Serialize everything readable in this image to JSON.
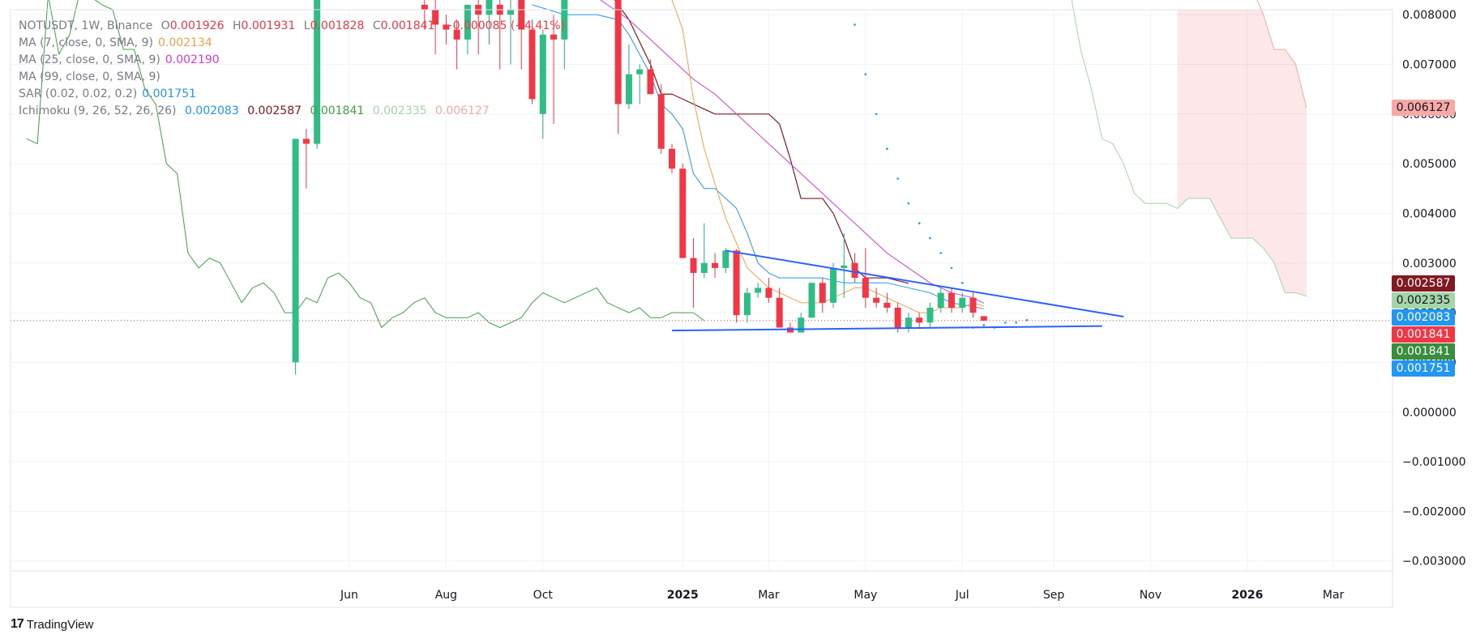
{
  "legend": {
    "symbol_line": "NOTUSDT, 1W, Binance",
    "ohlc": {
      "o_label": "O",
      "o": "0.001926",
      "h_label": "H",
      "h": "0.001931",
      "l_label": "L",
      "l": "0.001828",
      "c_label": "C",
      "c": "0.001841",
      "change": "−0.000085 (−4.41%)"
    },
    "indicators": [
      {
        "label": "MA (7, close, 0, SMA, 9)",
        "value": "0.002134",
        "color": "#f0a04b"
      },
      {
        "label": "MA (25, close, 0, SMA, 9)",
        "value": "0.002190",
        "color": "#d63ad6"
      },
      {
        "label": "MA (99, close, 0, SMA, 9)",
        "value": "",
        "color": "#2962ff"
      },
      {
        "label": "SAR (0.02, 0.02, 0.2)",
        "value": "0.001751",
        "color": "#2196f3"
      }
    ],
    "ichimoku": {
      "label": "Ichimoku (9, 26, 52, 26, 26)",
      "values": [
        {
          "v": "0.002083",
          "color": "#2196f3"
        },
        {
          "v": "0.002587",
          "color": "#801922"
        },
        {
          "v": "0.001841",
          "color": "#43a047"
        },
        {
          "v": "0.002335",
          "color": "#a5d6a7"
        },
        {
          "v": "0.006127",
          "color": "#f7a9a7"
        }
      ]
    }
  },
  "price_tags": [
    {
      "value": "0.006127",
      "price": 0.006127,
      "bg": "#f7a9a7",
      "fg": "#131722"
    },
    {
      "value": "0.002587",
      "price": 0.002587,
      "bg": "#801922",
      "fg": "#ffffff"
    },
    {
      "value": "0.002335",
      "price": 0.002335,
      "bg": "#a5d6a7",
      "fg": "#131722"
    },
    {
      "value": "0.002083",
      "price": 0.002083,
      "bg": "#2196f3",
      "fg": "#ffffff"
    },
    {
      "value": "0.001841",
      "price": 0.001841,
      "bg": "#f23645",
      "fg": "#ffffff"
    },
    {
      "value": "0.001841",
      "price": 0.001841,
      "bg": "#388e3c",
      "fg": "#ffffff"
    },
    {
      "value": "0.001751",
      "price": 0.001751,
      "bg": "#2196f3",
      "fg": "#ffffff"
    }
  ],
  "branding": {
    "logo": "17",
    "name": "TradingView"
  },
  "chart_data": {
    "type": "candlestick",
    "symbol": "NOTUSDT",
    "interval": "1W",
    "exchange": "Binance",
    "y_ticks": [
      "0.008000",
      "0.007000",
      "0.006000",
      "0.005000",
      "0.004000",
      "0.003000",
      "0.002000",
      "0.001000",
      "0.000000",
      "−0.001000",
      "−0.002000",
      "−0.003000"
    ],
    "y_tick_values": [
      0.008,
      0.007,
      0.006,
      0.005,
      0.004,
      0.003,
      0.002,
      0.001,
      0.0,
      -0.001,
      -0.002,
      -0.003
    ],
    "ylim": [
      -0.0032,
      0.0081
    ],
    "x_ticks": [
      {
        "label": "Jun",
        "t": 8,
        "bold": false
      },
      {
        "label": "Aug",
        "t": 17,
        "bold": false
      },
      {
        "label": "Oct",
        "t": 26,
        "bold": false
      },
      {
        "label": "2025",
        "t": 39,
        "bold": true
      },
      {
        "label": "Mar",
        "t": 47,
        "bold": false
      },
      {
        "label": "May",
        "t": 56,
        "bold": false
      },
      {
        "label": "Jul",
        "t": 65,
        "bold": false
      },
      {
        "label": "Sep",
        "t": 73.5,
        "bold": false
      },
      {
        "label": "Nov",
        "t": 82.5,
        "bold": false
      },
      {
        "label": "2026",
        "t": 91.5,
        "bold": true
      },
      {
        "label": "Mar",
        "t": 99.5,
        "bold": false
      }
    ],
    "xlim": [
      -23.5,
      105
    ],
    "last_price": 0.001841,
    "candles": [
      {
        "t": 3,
        "o": 0.001,
        "h": 0.0055,
        "l": 0.00075,
        "c": 0.0055
      },
      {
        "t": 4,
        "o": 0.0055,
        "h": 0.0057,
        "l": 0.0045,
        "c": 0.0054
      },
      {
        "t": 5,
        "o": 0.0054,
        "h": 0.0085,
        "l": 0.0053,
        "c": 0.0085
      },
      {
        "t": 15,
        "o": 0.0082,
        "h": 0.0084,
        "l": 0.0077,
        "c": 0.0081
      },
      {
        "t": 16,
        "o": 0.0081,
        "h": 0.0083,
        "l": 0.0072,
        "c": 0.0078
      },
      {
        "t": 17,
        "o": 0.0078,
        "h": 0.008,
        "l": 0.0074,
        "c": 0.0077
      },
      {
        "t": 18,
        "o": 0.0077,
        "h": 0.0079,
        "l": 0.0069,
        "c": 0.0075
      },
      {
        "t": 19,
        "o": 0.0075,
        "h": 0.0082,
        "l": 0.0072,
        "c": 0.0082
      },
      {
        "t": 20,
        "o": 0.0082,
        "h": 0.0084,
        "l": 0.0072,
        "c": 0.008
      },
      {
        "t": 21,
        "o": 0.008,
        "h": 0.0084,
        "l": 0.0074,
        "c": 0.0083
      },
      {
        "t": 22,
        "o": 0.0082,
        "h": 0.0084,
        "l": 0.0069,
        "c": 0.008
      },
      {
        "t": 23,
        "o": 0.008,
        "h": 0.0083,
        "l": 0.007,
        "c": 0.0081
      },
      {
        "t": 24,
        "o": 0.0083,
        "h": 0.0084,
        "l": 0.0069,
        "c": 0.0077
      },
      {
        "t": 25,
        "o": 0.0077,
        "h": 0.0079,
        "l": 0.0062,
        "c": 0.0063
      },
      {
        "t": 26,
        "o": 0.006,
        "h": 0.0077,
        "l": 0.0055,
        "c": 0.0076
      },
      {
        "t": 27,
        "o": 0.0076,
        "h": 0.008,
        "l": 0.0058,
        "c": 0.0075
      },
      {
        "t": 28,
        "o": 0.0075,
        "h": 0.0084,
        "l": 0.0069,
        "c": 0.0084
      },
      {
        "t": 33,
        "o": 0.0084,
        "h": 0.0085,
        "l": 0.0056,
        "c": 0.0062
      },
      {
        "t": 34,
        "o": 0.0062,
        "h": 0.0074,
        "l": 0.0061,
        "c": 0.0068
      },
      {
        "t": 35,
        "o": 0.0068,
        "h": 0.007,
        "l": 0.0062,
        "c": 0.0069
      },
      {
        "t": 36,
        "o": 0.0069,
        "h": 0.0071,
        "l": 0.0064,
        "c": 0.0064
      },
      {
        "t": 37,
        "o": 0.0064,
        "h": 0.0066,
        "l": 0.0052,
        "c": 0.0053
      },
      {
        "t": 38,
        "o": 0.0053,
        "h": 0.0054,
        "l": 0.0048,
        "c": 0.0049
      },
      {
        "t": 39,
        "o": 0.0049,
        "h": 0.005,
        "l": 0.0031,
        "c": 0.0031
      },
      {
        "t": 40,
        "o": 0.0031,
        "h": 0.0035,
        "l": 0.0021,
        "c": 0.0028
      },
      {
        "t": 41,
        "o": 0.0028,
        "h": 0.0038,
        "l": 0.0027,
        "c": 0.003
      },
      {
        "t": 42,
        "o": 0.003,
        "h": 0.0032,
        "l": 0.0027,
        "c": 0.0029
      },
      {
        "t": 43,
        "o": 0.0029,
        "h": 0.0033,
        "l": 0.0028,
        "c": 0.00325
      },
      {
        "t": 44,
        "o": 0.00325,
        "h": 0.00328,
        "l": 0.0018,
        "c": 0.00195
      },
      {
        "t": 45,
        "o": 0.00195,
        "h": 0.0025,
        "l": 0.0018,
        "c": 0.0024
      },
      {
        "t": 46,
        "o": 0.0024,
        "h": 0.0026,
        "l": 0.0023,
        "c": 0.0025
      },
      {
        "t": 47,
        "o": 0.0025,
        "h": 0.0027,
        "l": 0.0022,
        "c": 0.0023
      },
      {
        "t": 48,
        "o": 0.0023,
        "h": 0.0025,
        "l": 0.0017,
        "c": 0.0017
      },
      {
        "t": 49,
        "o": 0.0017,
        "h": 0.0018,
        "l": 0.0016,
        "c": 0.0016
      },
      {
        "t": 50,
        "o": 0.0016,
        "h": 0.002,
        "l": 0.0016,
        "c": 0.0019
      },
      {
        "t": 51,
        "o": 0.0019,
        "h": 0.0026,
        "l": 0.0019,
        "c": 0.0026
      },
      {
        "t": 52,
        "o": 0.0026,
        "h": 0.0027,
        "l": 0.002,
        "c": 0.0022
      },
      {
        "t": 53,
        "o": 0.0022,
        "h": 0.003,
        "l": 0.0021,
        "c": 0.0029
      },
      {
        "t": 54,
        "o": 0.0029,
        "h": 0.0036,
        "l": 0.0023,
        "c": 0.00295
      },
      {
        "t": 55,
        "o": 0.003,
        "h": 0.0032,
        "l": 0.0026,
        "c": 0.0027
      },
      {
        "t": 56,
        "o": 0.0027,
        "h": 0.0033,
        "l": 0.0021,
        "c": 0.0023
      },
      {
        "t": 57,
        "o": 0.0023,
        "h": 0.0025,
        "l": 0.0021,
        "c": 0.0022
      },
      {
        "t": 58,
        "o": 0.0022,
        "h": 0.0024,
        "l": 0.002,
        "c": 0.0021
      },
      {
        "t": 59,
        "o": 0.0021,
        "h": 0.0022,
        "l": 0.0016,
        "c": 0.0017
      },
      {
        "t": 60,
        "o": 0.0017,
        "h": 0.002,
        "l": 0.0016,
        "c": 0.0019
      },
      {
        "t": 61,
        "o": 0.0019,
        "h": 0.002,
        "l": 0.0017,
        "c": 0.0018
      },
      {
        "t": 62,
        "o": 0.0018,
        "h": 0.0022,
        "l": 0.0017,
        "c": 0.0021
      },
      {
        "t": 63,
        "o": 0.0021,
        "h": 0.0025,
        "l": 0.002,
        "c": 0.0024
      },
      {
        "t": 64,
        "o": 0.0024,
        "h": 0.0025,
        "l": 0.002,
        "c": 0.0021
      },
      {
        "t": 65,
        "o": 0.0021,
        "h": 0.0024,
        "l": 0.002,
        "c": 0.0023
      },
      {
        "t": 66,
        "o": 0.0023,
        "h": 0.0024,
        "l": 0.0019,
        "c": 0.002
      },
      {
        "t": 67,
        "o": 0.00193,
        "h": 0.00193,
        "l": 0.00183,
        "c": 0.00184
      }
    ],
    "ma7": [
      [
        38,
        0.0083
      ],
      [
        39,
        0.0077
      ],
      [
        40,
        0.0063
      ],
      [
        41,
        0.0053
      ],
      [
        42,
        0.0046
      ],
      [
        43,
        0.0039
      ],
      [
        44,
        0.0034
      ],
      [
        45,
        0.0029
      ],
      [
        46,
        0.0027
      ],
      [
        47,
        0.0025
      ],
      [
        48,
        0.0024
      ],
      [
        49,
        0.0023
      ],
      [
        50,
        0.0022
      ],
      [
        51,
        0.0022
      ],
      [
        52,
        0.0022
      ],
      [
        53,
        0.0023
      ],
      [
        54,
        0.0024
      ],
      [
        55,
        0.0025
      ],
      [
        56,
        0.0025
      ],
      [
        57,
        0.0024
      ],
      [
        58,
        0.0023
      ],
      [
        59,
        0.0022
      ],
      [
        60,
        0.0021
      ],
      [
        61,
        0.002
      ],
      [
        62,
        0.002
      ],
      [
        63,
        0.0021
      ],
      [
        64,
        0.0021
      ],
      [
        65,
        0.0021
      ],
      [
        66,
        0.0022
      ],
      [
        67,
        0.00213
      ]
    ],
    "ma25": [
      [
        30,
        0.0085
      ],
      [
        32,
        0.0082
      ],
      [
        34,
        0.0079
      ],
      [
        36,
        0.0075
      ],
      [
        38,
        0.0071
      ],
      [
        40,
        0.0067
      ],
      [
        42,
        0.0064
      ],
      [
        44,
        0.006
      ],
      [
        46,
        0.0056
      ],
      [
        48,
        0.0052
      ],
      [
        50,
        0.0048
      ],
      [
        52,
        0.0044
      ],
      [
        54,
        0.004
      ],
      [
        56,
        0.0036
      ],
      [
        58,
        0.0032
      ],
      [
        60,
        0.0029
      ],
      [
        62,
        0.0026
      ],
      [
        64,
        0.0024
      ],
      [
        66,
        0.0023
      ],
      [
        67,
        0.00219
      ]
    ],
    "ichimoku_tenkan": [
      [
        25,
        0.0082
      ],
      [
        28,
        0.008
      ],
      [
        31,
        0.008
      ],
      [
        33,
        0.0079
      ],
      [
        34,
        0.0076
      ],
      [
        36,
        0.0068
      ],
      [
        37,
        0.0062
      ],
      [
        38,
        0.006
      ],
      [
        39,
        0.0057
      ],
      [
        40,
        0.0048
      ],
      [
        41,
        0.0045
      ],
      [
        42,
        0.0045
      ],
      [
        43,
        0.0043
      ],
      [
        44,
        0.0041
      ],
      [
        45,
        0.0036
      ],
      [
        46,
        0.003
      ],
      [
        47,
        0.0028
      ],
      [
        48,
        0.0027
      ],
      [
        49,
        0.0027
      ],
      [
        52,
        0.0027
      ],
      [
        54,
        0.0026
      ],
      [
        58,
        0.0026
      ],
      [
        60,
        0.0025
      ],
      [
        62,
        0.0024
      ],
      [
        63,
        0.0023
      ],
      [
        64,
        0.0022
      ],
      [
        67,
        0.00208
      ]
    ],
    "ichimoku_kijun": [
      [
        26,
        0.0085
      ],
      [
        32,
        0.0085
      ],
      [
        34,
        0.0079
      ],
      [
        36,
        0.007
      ],
      [
        37,
        0.0064
      ],
      [
        38,
        0.0064
      ],
      [
        39,
        0.0063
      ],
      [
        40,
        0.0062
      ],
      [
        41,
        0.0061
      ],
      [
        42,
        0.006
      ],
      [
        47,
        0.006
      ],
      [
        48,
        0.0058
      ],
      [
        49,
        0.0051
      ],
      [
        50,
        0.0043
      ],
      [
        52,
        0.0043
      ],
      [
        53,
        0.004
      ],
      [
        54,
        0.0035
      ],
      [
        55,
        0.0029
      ],
      [
        56,
        0.0027
      ],
      [
        58,
        0.0027
      ],
      [
        60,
        0.00259
      ]
    ],
    "ichimoku_chikou": [
      [
        -22,
        0.0055
      ],
      [
        -21,
        0.0054
      ],
      [
        -20,
        0.0084
      ],
      [
        -19,
        0.0072
      ],
      [
        -18,
        0.0076
      ],
      [
        -17,
        0.0085
      ],
      [
        -15,
        0.0082
      ],
      [
        -14,
        0.0081
      ],
      [
        -13,
        0.0073
      ],
      [
        -12,
        0.0073
      ],
      [
        -11,
        0.0065
      ],
      [
        -10,
        0.0062
      ],
      [
        -9,
        0.005
      ],
      [
        -8,
        0.0048
      ],
      [
        -7,
        0.0032
      ],
      [
        -6,
        0.0029
      ],
      [
        -5,
        0.0031
      ],
      [
        -4,
        0.003
      ],
      [
        -3,
        0.0026
      ],
      [
        -2,
        0.0022
      ],
      [
        -1,
        0.0025
      ],
      [
        0,
        0.0026
      ],
      [
        1,
        0.0024
      ],
      [
        2,
        0.002
      ],
      [
        3,
        0.002
      ],
      [
        4,
        0.0023
      ],
      [
        5,
        0.0022
      ],
      [
        6,
        0.0027
      ],
      [
        7,
        0.0028
      ],
      [
        8,
        0.0026
      ],
      [
        9,
        0.0023
      ],
      [
        10,
        0.0022
      ],
      [
        11,
        0.0017
      ],
      [
        12,
        0.0019
      ],
      [
        13,
        0.002
      ],
      [
        14,
        0.0022
      ],
      [
        15,
        0.0023
      ],
      [
        16,
        0.002
      ],
      [
        17,
        0.0019
      ],
      [
        18,
        0.0019
      ],
      [
        19,
        0.0019
      ],
      [
        20,
        0.002
      ],
      [
        21,
        0.0018
      ],
      [
        22,
        0.0017
      ],
      [
        23,
        0.0018
      ],
      [
        24,
        0.0019
      ],
      [
        25,
        0.0022
      ],
      [
        26,
        0.0024
      ],
      [
        27,
        0.0023
      ],
      [
        28,
        0.0022
      ],
      [
        29,
        0.0023
      ],
      [
        30,
        0.0024
      ],
      [
        31,
        0.0025
      ],
      [
        32,
        0.0022
      ],
      [
        33,
        0.0021
      ],
      [
        34,
        0.002
      ],
      [
        35,
        0.0021
      ],
      [
        36,
        0.0019
      ],
      [
        37,
        0.0019
      ],
      [
        38,
        0.002
      ],
      [
        39,
        0.002
      ],
      [
        40,
        0.002
      ],
      [
        41,
        0.00184
      ]
    ],
    "ichimoku_span_a": [
      [
        75,
        0.0085
      ],
      [
        76,
        0.0073
      ],
      [
        77,
        0.0065
      ],
      [
        78,
        0.0055
      ],
      [
        79,
        0.0054
      ],
      [
        80,
        0.005
      ],
      [
        81,
        0.0044
      ],
      [
        82,
        0.0042
      ],
      [
        84,
        0.0042
      ],
      [
        85,
        0.0041
      ],
      [
        86,
        0.0043
      ],
      [
        88,
        0.0043
      ],
      [
        89,
        0.0039
      ],
      [
        90,
        0.0035
      ],
      [
        92,
        0.0035
      ],
      [
        93,
        0.0033
      ],
      [
        94,
        0.003
      ],
      [
        95,
        0.0024
      ],
      [
        96,
        0.0024
      ],
      [
        97,
        0.00233
      ]
    ],
    "ichimoku_span_b": [
      [
        85,
        0.0085
      ],
      [
        92,
        0.0085
      ],
      [
        93,
        0.008
      ],
      [
        94,
        0.0073
      ],
      [
        95,
        0.0073
      ],
      [
        96,
        0.007
      ],
      [
        97,
        0.00613
      ]
    ],
    "sar": [
      [
        55,
        0.0078
      ],
      [
        56,
        0.0068
      ],
      [
        57,
        0.006
      ],
      [
        58,
        0.0053
      ],
      [
        59,
        0.0047
      ],
      [
        60,
        0.0042
      ],
      [
        61,
        0.0038
      ],
      [
        62,
        0.0035
      ],
      [
        63,
        0.0032
      ],
      [
        64,
        0.0029
      ],
      [
        65,
        0.0026
      ],
      [
        66,
        0.0017
      ],
      [
        67,
        0.00175
      ],
      [
        68,
        0.0017
      ],
      [
        69,
        0.0018
      ],
      [
        70,
        0.0018
      ],
      [
        71,
        0.00185
      ]
    ],
    "trendline_upper": [
      [
        43,
        0.00325
      ],
      [
        80,
        0.00192
      ]
    ],
    "trendline_lower": [
      [
        38,
        0.00164
      ],
      [
        78,
        0.00173
      ]
    ]
  }
}
